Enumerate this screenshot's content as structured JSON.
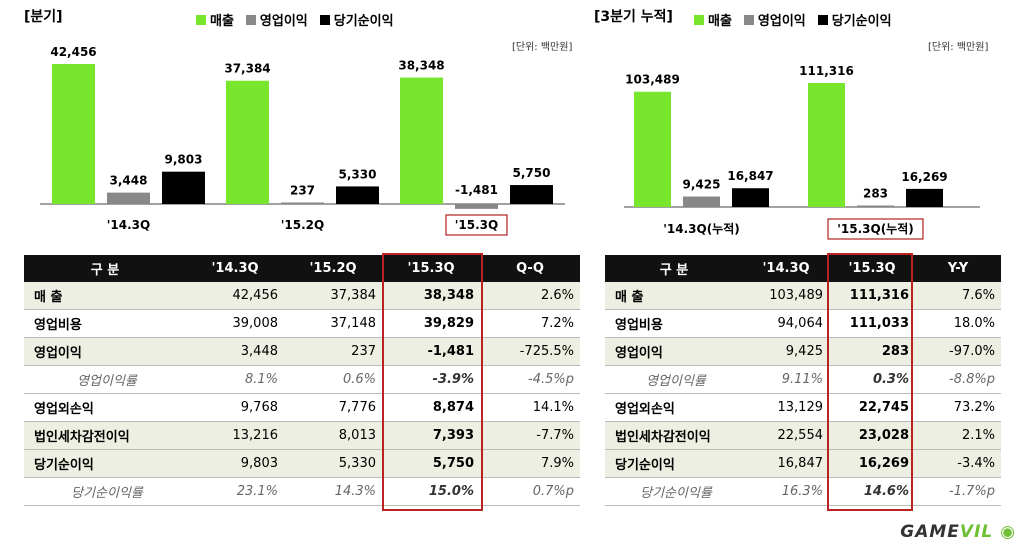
{
  "colors": {
    "revenue": "#77e62d",
    "op_profit": "#888888",
    "net_profit": "#000000",
    "highlight": "#b22222"
  },
  "left": {
    "title": "[분기]",
    "unit": "[단위: 백만원]",
    "legend": [
      "매출",
      "영업이익",
      "당기순이익"
    ]
  },
  "right": {
    "title": "[3분기 누적]",
    "unit": "[단위: 백만원]",
    "legend": [
      "매출",
      "영업이익",
      "당기순이익"
    ]
  },
  "chart_data": [
    {
      "type": "bar",
      "categories": [
        "'14.3Q",
        "'15.2Q",
        "'15.3Q"
      ],
      "series": [
        {
          "name": "매출",
          "values": [
            42456,
            37384,
            38348
          ],
          "labels": [
            "42,456",
            "37,384",
            "38,348"
          ]
        },
        {
          "name": "영업이익",
          "values": [
            3448,
            237,
            -1481
          ],
          "labels": [
            "3,448",
            "237",
            "-1,481"
          ]
        },
        {
          "name": "당기순이익",
          "values": [
            9803,
            5330,
            5750
          ],
          "labels": [
            "9,803",
            "5,330",
            "5,750"
          ]
        }
      ],
      "highlight_category": "'15.3Q"
    },
    {
      "type": "bar",
      "categories": [
        "'14.3Q(누적)",
        "'15.3Q(누적)"
      ],
      "series": [
        {
          "name": "매출",
          "values": [
            103489,
            111316
          ],
          "labels": [
            "103,489",
            "111,316"
          ]
        },
        {
          "name": "영업이익",
          "values": [
            9425,
            283
          ],
          "labels": [
            "9,425",
            "283"
          ]
        },
        {
          "name": "당기순이익",
          "values": [
            16847,
            16269
          ],
          "labels": [
            "16,847",
            "16,269"
          ]
        }
      ],
      "highlight_category": "'15.3Q(누적)"
    }
  ],
  "table_left": {
    "headers": [
      "구 분",
      "'14.3Q",
      "'15.2Q",
      "'15.3Q",
      "Q-Q"
    ],
    "rows": [
      {
        "cells": [
          "매 출",
          "42,456",
          "37,384",
          "38,348",
          "2.6%"
        ],
        "style": "shade"
      },
      {
        "cells": [
          "영업비용",
          "39,008",
          "37,148",
          "39,829",
          "7.2%"
        ],
        "style": ""
      },
      {
        "cells": [
          "영업이익",
          "3,448",
          "237",
          "-1,481",
          "-725.5%"
        ],
        "style": "shade"
      },
      {
        "cells": [
          "영업이익률",
          "8.1%",
          "0.6%",
          "-3.9%",
          "-4.5%p"
        ],
        "style": "italic"
      },
      {
        "cells": [
          "영업외손익",
          "9,768",
          "7,776",
          "8,874",
          "14.1%"
        ],
        "style": ""
      },
      {
        "cells": [
          "법인세차감전이익",
          "13,216",
          "8,013",
          "7,393",
          "-7.7%"
        ],
        "style": "shade"
      },
      {
        "cells": [
          "당기순이익",
          "9,803",
          "5,330",
          "5,750",
          "7.9%"
        ],
        "style": "shade"
      },
      {
        "cells": [
          "당기순이익률",
          "23.1%",
          "14.3%",
          "15.0%",
          "0.7%p"
        ],
        "style": "italic"
      }
    ]
  },
  "table_right": {
    "headers": [
      "구 분",
      "'14.3Q",
      "'15.3Q",
      "Y-Y"
    ],
    "rows": [
      {
        "cells": [
          "매 출",
          "103,489",
          "111,316",
          "7.6%"
        ],
        "style": "shade"
      },
      {
        "cells": [
          "영업비용",
          "94,064",
          "111,033",
          "18.0%"
        ],
        "style": ""
      },
      {
        "cells": [
          "영업이익",
          "9,425",
          "283",
          "-97.0%"
        ],
        "style": "shade"
      },
      {
        "cells": [
          "영업이익률",
          "9.11%",
          "0.3%",
          "-8.8%p"
        ],
        "style": "italic"
      },
      {
        "cells": [
          "영업외손익",
          "13,129",
          "22,745",
          "73.2%"
        ],
        "style": ""
      },
      {
        "cells": [
          "법인세차감전이익",
          "22,554",
          "23,028",
          "2.1%"
        ],
        "style": "shade"
      },
      {
        "cells": [
          "당기순이익",
          "16,847",
          "16,269",
          "-3.4%"
        ],
        "style": "shade"
      },
      {
        "cells": [
          "당기순이익률",
          "16.3%",
          "14.6%",
          "-1.7%p"
        ],
        "style": "italic"
      }
    ]
  },
  "logo": {
    "main": "GAME",
    "accent": "VIL"
  }
}
